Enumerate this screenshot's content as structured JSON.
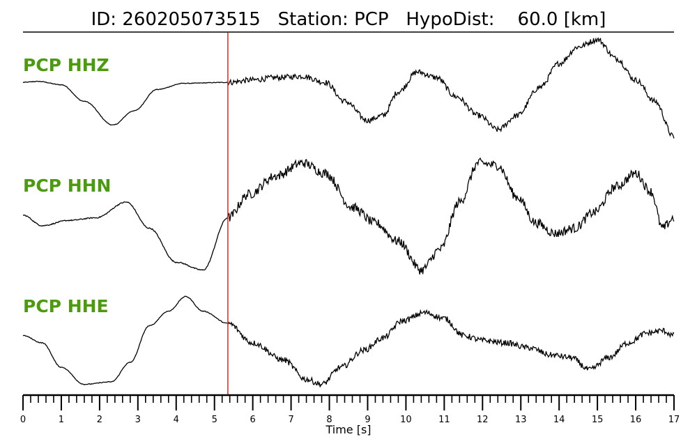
{
  "header": {
    "title": "ID: 260205073515   Station: PCP   HypoDist:    60.0 [km]"
  },
  "colors": {
    "label": "#4c9a0e",
    "trace": "#000000",
    "pick": "#e8231e"
  },
  "chart_data": {
    "type": "line",
    "xlabel": "Time [s]",
    "xlim": [
      0,
      17
    ],
    "xticks": [
      0,
      1,
      2,
      3,
      4,
      5,
      6,
      7,
      8,
      9,
      10,
      11,
      12,
      13,
      14,
      15,
      16,
      17
    ],
    "xtick_labels": [
      "0",
      "1",
      "2",
      "3",
      "4",
      "5",
      "6",
      "7",
      "8",
      "9",
      "10",
      "11",
      "12",
      "13",
      "14",
      "15",
      "16",
      "17"
    ],
    "minor_tick_step": 0.2,
    "pick_time": 5.35,
    "series": [
      {
        "name": "PCP HHZ",
        "noise": 0.06,
        "points": [
          [
            0,
            0.1
          ],
          [
            0.4,
            0.12
          ],
          [
            1.0,
            0.05
          ],
          [
            1.6,
            -0.3
          ],
          [
            2.35,
            -0.8
          ],
          [
            2.9,
            -0.5
          ],
          [
            3.5,
            -0.05
          ],
          [
            4.2,
            0.08
          ],
          [
            5.35,
            0.1
          ],
          [
            6.0,
            0.15
          ],
          [
            6.6,
            0.2
          ],
          [
            7.3,
            0.23
          ],
          [
            7.9,
            0.1
          ],
          [
            8.4,
            -0.3
          ],
          [
            9.0,
            -0.7
          ],
          [
            9.4,
            -0.6
          ],
          [
            9.8,
            -0.1
          ],
          [
            10.3,
            0.32
          ],
          [
            10.8,
            0.2
          ],
          [
            11.3,
            -0.2
          ],
          [
            11.9,
            -0.6
          ],
          [
            12.4,
            -0.9
          ],
          [
            12.9,
            -0.6
          ],
          [
            13.5,
            0.0
          ],
          [
            14.0,
            0.5
          ],
          [
            14.5,
            0.85
          ],
          [
            15.0,
            1.0
          ],
          [
            15.5,
            0.6
          ],
          [
            16.0,
            0.15
          ],
          [
            16.5,
            -0.3
          ],
          [
            17.0,
            -1.05
          ]
        ]
      },
      {
        "name": "PCP HHN",
        "noise": 0.09,
        "points": [
          [
            0,
            -0.05
          ],
          [
            0.5,
            -0.25
          ],
          [
            1.2,
            -0.15
          ],
          [
            1.9,
            -0.1
          ],
          [
            2.7,
            0.2
          ],
          [
            3.3,
            -0.3
          ],
          [
            4.0,
            -0.95
          ],
          [
            4.7,
            -1.1
          ],
          [
            5.35,
            -0.1
          ],
          [
            5.9,
            0.35
          ],
          [
            6.6,
            0.7
          ],
          [
            7.3,
            0.95
          ],
          [
            7.9,
            0.75
          ],
          [
            8.6,
            0.1
          ],
          [
            9.2,
            -0.2
          ],
          [
            9.8,
            -0.55
          ],
          [
            10.4,
            -1.1
          ],
          [
            10.9,
            -0.7
          ],
          [
            11.4,
            0.2
          ],
          [
            11.9,
            0.95
          ],
          [
            12.4,
            0.9
          ],
          [
            12.9,
            0.3
          ],
          [
            13.4,
            -0.2
          ],
          [
            13.9,
            -0.4
          ],
          [
            14.4,
            -0.3
          ],
          [
            14.9,
            0.0
          ],
          [
            15.5,
            0.5
          ],
          [
            16.0,
            0.75
          ],
          [
            16.4,
            0.4
          ],
          [
            16.7,
            -0.3
          ],
          [
            17.0,
            -0.1
          ]
        ]
      },
      {
        "name": "PCP HHE",
        "noise": 0.06,
        "points": [
          [
            0,
            -0.05
          ],
          [
            0.5,
            -0.2
          ],
          [
            1.0,
            -0.7
          ],
          [
            1.6,
            -1.05
          ],
          [
            2.3,
            -1.0
          ],
          [
            2.8,
            -0.6
          ],
          [
            3.3,
            0.15
          ],
          [
            3.8,
            0.45
          ],
          [
            4.25,
            0.75
          ],
          [
            4.7,
            0.45
          ],
          [
            5.35,
            0.2
          ],
          [
            6.0,
            -0.2
          ],
          [
            6.8,
            -0.55
          ],
          [
            7.4,
            -0.95
          ],
          [
            7.8,
            -1.05
          ],
          [
            8.3,
            -0.7
          ],
          [
            8.9,
            -0.35
          ],
          [
            9.4,
            -0.1
          ],
          [
            9.9,
            0.25
          ],
          [
            10.5,
            0.42
          ],
          [
            11.0,
            0.3
          ],
          [
            11.5,
            -0.05
          ],
          [
            12.0,
            -0.15
          ],
          [
            12.6,
            -0.2
          ],
          [
            13.2,
            -0.3
          ],
          [
            13.8,
            -0.45
          ],
          [
            14.3,
            -0.5
          ],
          [
            14.8,
            -0.75
          ],
          [
            15.3,
            -0.5
          ],
          [
            15.8,
            -0.2
          ],
          [
            16.3,
            0.0
          ],
          [
            16.7,
            0.05
          ],
          [
            17.0,
            -0.05
          ]
        ]
      }
    ]
  }
}
